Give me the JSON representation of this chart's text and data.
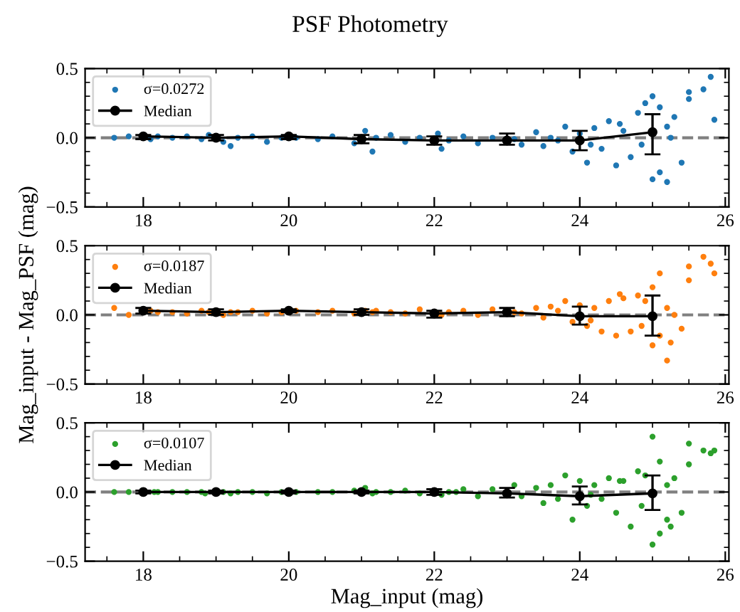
{
  "chart_data": [
    {
      "type": "scatter",
      "title": "PSF Photometry",
      "xlim": [
        17.2,
        26.05
      ],
      "ylim": [
        -0.5,
        0.5
      ],
      "xticks": [
        18,
        20,
        22,
        24,
        26
      ],
      "yticks": [
        {
          "value": -0.5,
          "label": "−0.5"
        },
        {
          "value": 0,
          "label": "0.0"
        },
        {
          "value": 0.5,
          "label": "0.5"
        }
      ],
      "legend": "top left",
      "grid": false,
      "marker": "circle",
      "ref_lines": [
        {
          "axis": "y",
          "value": 0,
          "label": null,
          "color": "#808080",
          "line_style": "dashed"
        }
      ],
      "series": [
        {
          "type": "scatter",
          "name": "σ=0.0272",
          "color": "#1f77b4",
          "x": [
            17.6,
            17.8,
            18.1,
            18.2,
            18.4,
            18.6,
            18.8,
            18.9,
            19.1,
            19.3,
            19.5,
            19.7,
            19.9,
            20.1,
            20.4,
            20.6,
            20.9,
            21.15,
            21.2,
            21.4,
            21.6,
            21.8,
            22.1,
            22.2,
            22.4,
            22.6,
            22.8,
            23.1,
            23.2,
            23.4,
            23.5,
            23.7,
            23.8,
            23.9,
            24.0,
            24.1,
            24.2,
            24.3,
            24.4,
            24.5,
            24.6,
            24.7,
            24.8,
            24.9,
            25.0,
            25.0,
            25.1,
            25.1,
            25.2,
            25.2,
            25.3,
            25.4,
            25.5,
            25.5,
            25.7,
            25.8,
            25.85,
            21.05,
            22.05,
            23.6,
            24.15,
            24.55,
            24.85,
            25.25,
            19.2
          ],
          "values": [
            0.0,
            0.01,
            -0.01,
            0.01,
            0.0,
            0.01,
            -0.01,
            0.02,
            -0.03,
            0.0,
            0.01,
            -0.03,
            0.0,
            0.0,
            -0.01,
            0.01,
            -0.04,
            -0.1,
            0.0,
            0.02,
            -0.03,
            0.0,
            -0.08,
            -0.02,
            0.01,
            -0.04,
            0.0,
            -0.01,
            -0.05,
            0.04,
            -0.06,
            -0.02,
            0.08,
            -0.1,
            0.03,
            -0.18,
            0.07,
            -0.08,
            0.12,
            -0.2,
            0.05,
            -0.14,
            0.18,
            0.25,
            -0.3,
            0.3,
            0.22,
            -0.25,
            -0.32,
            0.08,
            0.15,
            -0.18,
            0.33,
            0.28,
            0.35,
            0.44,
            0.13,
            0.05,
            0.03,
            0.0,
            -0.05,
            0.1,
            -0.05,
            0.0,
            -0.06
          ]
        },
        {
          "type": "line",
          "name": "Median",
          "color": "#000000",
          "x": [
            18,
            19,
            20,
            21,
            22,
            23,
            24,
            25
          ],
          "values": [
            0.01,
            0.0,
            0.01,
            -0.01,
            -0.02,
            -0.02,
            -0.02,
            0.04
          ],
          "errors": [
            [
              -0.01,
              0.02
            ],
            [
              -0.02,
              0.02
            ],
            [
              -0.01,
              0.02
            ],
            [
              -0.04,
              0.02
            ],
            [
              -0.05,
              0.01
            ],
            [
              -0.05,
              0.03
            ],
            [
              -0.09,
              0.05
            ],
            [
              -0.12,
              0.17
            ]
          ]
        }
      ]
    },
    {
      "type": "scatter",
      "ylabel": "Mag_input - Mag_PSF (mag)",
      "xlim": [
        17.2,
        26.05
      ],
      "ylim": [
        -0.5,
        0.5
      ],
      "xticks": [
        18,
        20,
        22,
        24,
        26
      ],
      "yticks": [
        {
          "value": -0.5,
          "label": "−0.5"
        },
        {
          "value": 0,
          "label": "0.0"
        },
        {
          "value": 0.5,
          "label": "0.5"
        }
      ],
      "legend": "top left",
      "grid": false,
      "marker": "circle",
      "ref_lines": [
        {
          "axis": "y",
          "value": 0,
          "label": null,
          "color": "#808080",
          "line_style": "dashed"
        }
      ],
      "series": [
        {
          "type": "scatter",
          "name": "σ=0.0187",
          "color": "#ff7f0e",
          "x": [
            17.6,
            17.8,
            18.1,
            18.2,
            18.4,
            18.6,
            18.8,
            18.9,
            19.1,
            19.3,
            19.5,
            19.7,
            19.9,
            20.1,
            20.4,
            20.6,
            20.9,
            21.15,
            21.2,
            21.4,
            21.6,
            21.8,
            22.1,
            22.2,
            22.4,
            22.6,
            22.8,
            23.1,
            23.2,
            23.4,
            23.5,
            23.7,
            23.8,
            23.9,
            24.0,
            24.1,
            24.2,
            24.3,
            24.4,
            24.5,
            24.6,
            24.7,
            24.8,
            24.9,
            25.0,
            25.0,
            25.1,
            25.1,
            25.2,
            25.2,
            25.3,
            25.4,
            25.5,
            25.5,
            25.7,
            25.8,
            25.85,
            21.05,
            22.05,
            23.6,
            24.15,
            24.55,
            24.85,
            25.25,
            19.2
          ],
          "values": [
            0.05,
            0.0,
            0.03,
            0.02,
            0.02,
            0.01,
            0.03,
            0.02,
            0.0,
            0.02,
            0.03,
            0.01,
            0.02,
            0.03,
            0.02,
            0.03,
            0.01,
            0.02,
            0.03,
            0.02,
            0.01,
            0.04,
            0.0,
            0.02,
            0.03,
            0.0,
            0.04,
            0.02,
            0.01,
            0.05,
            -0.02,
            0.03,
            0.1,
            -0.05,
            0.07,
            -0.08,
            0.05,
            -0.12,
            0.1,
            -0.15,
            0.12,
            -0.12,
            0.14,
            0.1,
            -0.22,
            0.2,
            0.3,
            -0.15,
            -0.33,
            0.05,
            0.0,
            -0.1,
            0.35,
            0.25,
            0.42,
            0.37,
            0.3,
            0.03,
            0.01,
            0.06,
            -0.04,
            0.15,
            -0.08,
            -0.2,
            0.02
          ]
        },
        {
          "type": "line",
          "name": "Median",
          "color": "#000000",
          "x": [
            18,
            19,
            20,
            21,
            22,
            23,
            24,
            25
          ],
          "values": [
            0.03,
            0.02,
            0.03,
            0.02,
            0.01,
            0.02,
            -0.01,
            -0.01
          ],
          "errors": [
            [
              0.01,
              0.05
            ],
            [
              0.0,
              0.04
            ],
            [
              0.02,
              0.04
            ],
            [
              0.0,
              0.04
            ],
            [
              -0.02,
              0.03
            ],
            [
              -0.01,
              0.05
            ],
            [
              -0.07,
              0.06
            ],
            [
              -0.15,
              0.14
            ]
          ]
        }
      ]
    },
    {
      "type": "scatter",
      "xlabel": "Mag_input (mag)",
      "xlim": [
        17.2,
        26.05
      ],
      "ylim": [
        -0.5,
        0.5
      ],
      "xticks": [
        18,
        20,
        22,
        24,
        26
      ],
      "yticks": [
        {
          "value": -0.5,
          "label": "−0.5"
        },
        {
          "value": 0,
          "label": "0.0"
        },
        {
          "value": 0.5,
          "label": "0.5"
        }
      ],
      "legend": "top left",
      "grid": false,
      "marker": "circle",
      "ref_lines": [
        {
          "axis": "y",
          "value": 0,
          "label": null,
          "color": "#808080",
          "line_style": "dashed"
        }
      ],
      "series": [
        {
          "type": "scatter",
          "name": "σ=0.0107",
          "color": "#2ca02c",
          "x": [
            17.6,
            17.8,
            18.15,
            18.2,
            18.4,
            18.6,
            18.8,
            18.85,
            19.1,
            19.3,
            19.5,
            19.7,
            19.9,
            20.1,
            20.4,
            20.6,
            20.9,
            21.15,
            21.2,
            21.4,
            21.6,
            21.8,
            22.1,
            22.2,
            22.4,
            22.6,
            22.8,
            23.1,
            23.2,
            23.4,
            23.5,
            23.7,
            23.8,
            23.9,
            24.0,
            24.1,
            24.2,
            24.3,
            24.4,
            24.5,
            24.6,
            24.7,
            24.8,
            24.9,
            25.0,
            25.0,
            25.1,
            25.1,
            25.2,
            25.2,
            25.3,
            25.4,
            25.5,
            25.5,
            25.7,
            25.8,
            25.85,
            21.05,
            22.3,
            23.6,
            24.15,
            24.55,
            24.85,
            25.25,
            19.2
          ],
          "values": [
            0.0,
            0.0,
            0.0,
            0.0,
            0.0,
            0.0,
            0.0,
            -0.01,
            0.0,
            0.0,
            0.0,
            -0.01,
            0.0,
            0.0,
            0.0,
            0.0,
            0.01,
            -0.01,
            0.0,
            0.0,
            0.01,
            -0.01,
            -0.02,
            0.0,
            0.02,
            -0.03,
            0.02,
            0.05,
            -0.03,
            0.03,
            -0.08,
            -0.05,
            0.12,
            -0.2,
            0.08,
            -0.1,
            0.05,
            -0.05,
            0.1,
            -0.15,
            0.08,
            -0.25,
            0.15,
            0.12,
            -0.38,
            0.4,
            0.22,
            -0.3,
            -0.2,
            0.05,
            0.1,
            -0.15,
            0.35,
            0.2,
            0.3,
            0.28,
            0.3,
            0.03,
            0.0,
            0.05,
            -0.02,
            0.08,
            -0.1,
            -0.25,
            -0.01
          ]
        },
        {
          "type": "line",
          "name": "Median",
          "color": "#000000",
          "x": [
            18,
            19,
            20,
            21,
            22,
            23,
            24,
            25
          ],
          "values": [
            0.0,
            0.0,
            0.0,
            0.0,
            0.0,
            -0.01,
            -0.03,
            -0.01
          ],
          "errors": [
            [
              -0.01,
              0.01
            ],
            [
              -0.01,
              0.01
            ],
            [
              -0.01,
              0.01
            ],
            [
              -0.01,
              0.01
            ],
            [
              -0.02,
              0.02
            ],
            [
              -0.04,
              0.03
            ],
            [
              -0.09,
              0.04
            ],
            [
              -0.13,
              0.12
            ]
          ]
        }
      ]
    }
  ]
}
